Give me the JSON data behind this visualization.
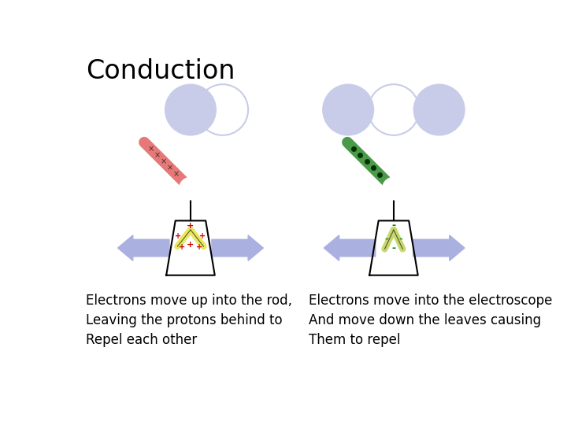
{
  "title": "Conduction",
  "title_fontsize": 24,
  "bg_color": "#ffffff",
  "circle_color_filled": "#c8cce8",
  "circle_color_outline": "#c8cce8",
  "arrow_color": "#aab0e0",
  "left_caption": "Electrons move up into the rod,\nLeaving the protons behind to\nRepel each other",
  "right_caption": "Electrons move into the electroscope\nAnd move down the leaves causing\nThem to repel",
  "caption_fontsize": 12,
  "rod_color_left": "#e87878",
  "rod_color_right": "#4a9a4a",
  "leaves_color_left": "#e8e860",
  "leaves_color_right": "#c8d870",
  "plus_color": "#cc0000",
  "minus_color": "#008800",
  "mark_color_left": "#333333",
  "mark_color_right": "#003300"
}
